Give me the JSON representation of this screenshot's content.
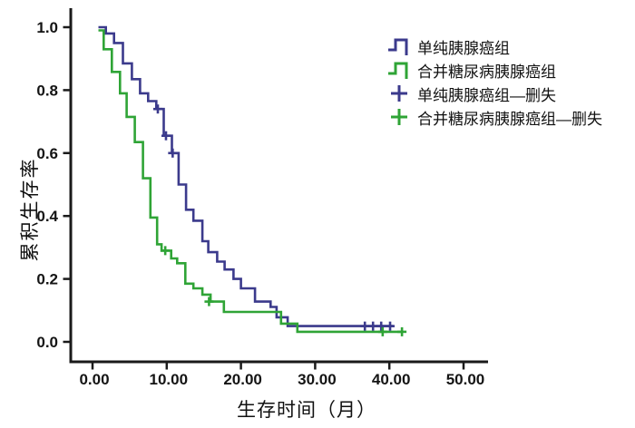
{
  "chart_data": {
    "type": "line",
    "variant": "kaplan_meier_step_survival",
    "title": "",
    "xlabel": "生存时间（月）",
    "ylabel": "累积生存率",
    "x_ticks": {
      "values": [
        0,
        10,
        20,
        30,
        40,
        50
      ],
      "labels": [
        "0.00",
        "10.00",
        "20.00",
        "30.00",
        "40.00",
        "50.00"
      ]
    },
    "y_ticks": {
      "values": [
        1.0,
        0.8,
        0.6,
        0.4,
        0.2,
        0.0
      ],
      "labels": [
        "1.0",
        "0.8",
        "0.6",
        "0.4",
        "0.2",
        "0.0"
      ]
    },
    "xlim": [
      -3,
      53
    ],
    "ylim": [
      0,
      1.05
    ],
    "grid": false,
    "legend_position": "upper-right",
    "background": "#ffffff",
    "axis_color": "#1a1a1a",
    "series": [
      {
        "name": "单纯胰腺癌组",
        "color": "#3b3a8c",
        "start": [
          0.8,
          1.0
        ],
        "steps": [
          [
            1.8,
            0.98
          ],
          [
            2.9,
            0.95
          ],
          [
            4.1,
            0.885
          ],
          [
            5.3,
            0.835
          ],
          [
            6.4,
            0.79
          ],
          [
            7.5,
            0.765
          ],
          [
            8.6,
            0.74
          ],
          [
            9.6,
            0.655
          ],
          [
            10.7,
            0.6
          ],
          [
            11.6,
            0.5
          ],
          [
            12.6,
            0.42
          ],
          [
            13.6,
            0.385
          ],
          [
            14.8,
            0.32
          ],
          [
            15.6,
            0.285
          ],
          [
            16.8,
            0.255
          ],
          [
            17.8,
            0.23
          ],
          [
            19.0,
            0.2
          ],
          [
            20.0,
            0.17
          ],
          [
            21.9,
            0.128
          ],
          [
            24.0,
            0.111
          ],
          [
            24.8,
            0.078
          ],
          [
            26.3,
            0.05
          ]
        ],
        "end_x": 40.5
      },
      {
        "name": "合并糖尿病胰腺癌组",
        "color": "#2fa436",
        "start": [
          0.8,
          0.99
        ],
        "steps": [
          [
            1.5,
            0.93
          ],
          [
            2.6,
            0.858
          ],
          [
            3.7,
            0.79
          ],
          [
            4.6,
            0.715
          ],
          [
            5.7,
            0.635
          ],
          [
            6.8,
            0.52
          ],
          [
            7.8,
            0.395
          ],
          [
            8.7,
            0.31
          ],
          [
            9.3,
            0.29
          ],
          [
            10.6,
            0.265
          ],
          [
            11.4,
            0.25
          ],
          [
            12.5,
            0.185
          ],
          [
            13.6,
            0.17
          ],
          [
            14.8,
            0.15
          ],
          [
            15.9,
            0.128
          ],
          [
            17.7,
            0.095
          ],
          [
            25.4,
            0.058
          ],
          [
            27.6,
            0.032
          ]
        ],
        "end_x": 41.7
      }
    ],
    "censor_series": [
      {
        "name": "单纯胰腺癌组—删失",
        "color": "#3b3a8c",
        "points": [
          [
            8.8,
            0.74
          ],
          [
            9.9,
            0.655
          ],
          [
            10.8,
            0.6
          ],
          [
            36.7,
            0.05
          ],
          [
            37.8,
            0.05
          ],
          [
            38.9,
            0.05
          ],
          [
            40.1,
            0.05
          ]
        ]
      },
      {
        "name": "合并糖尿病胰腺癌组—删失",
        "color": "#2fa436",
        "points": [
          [
            9.8,
            0.29
          ],
          [
            15.7,
            0.128
          ],
          [
            39.1,
            0.032
          ],
          [
            41.7,
            0.032
          ]
        ]
      }
    ]
  }
}
